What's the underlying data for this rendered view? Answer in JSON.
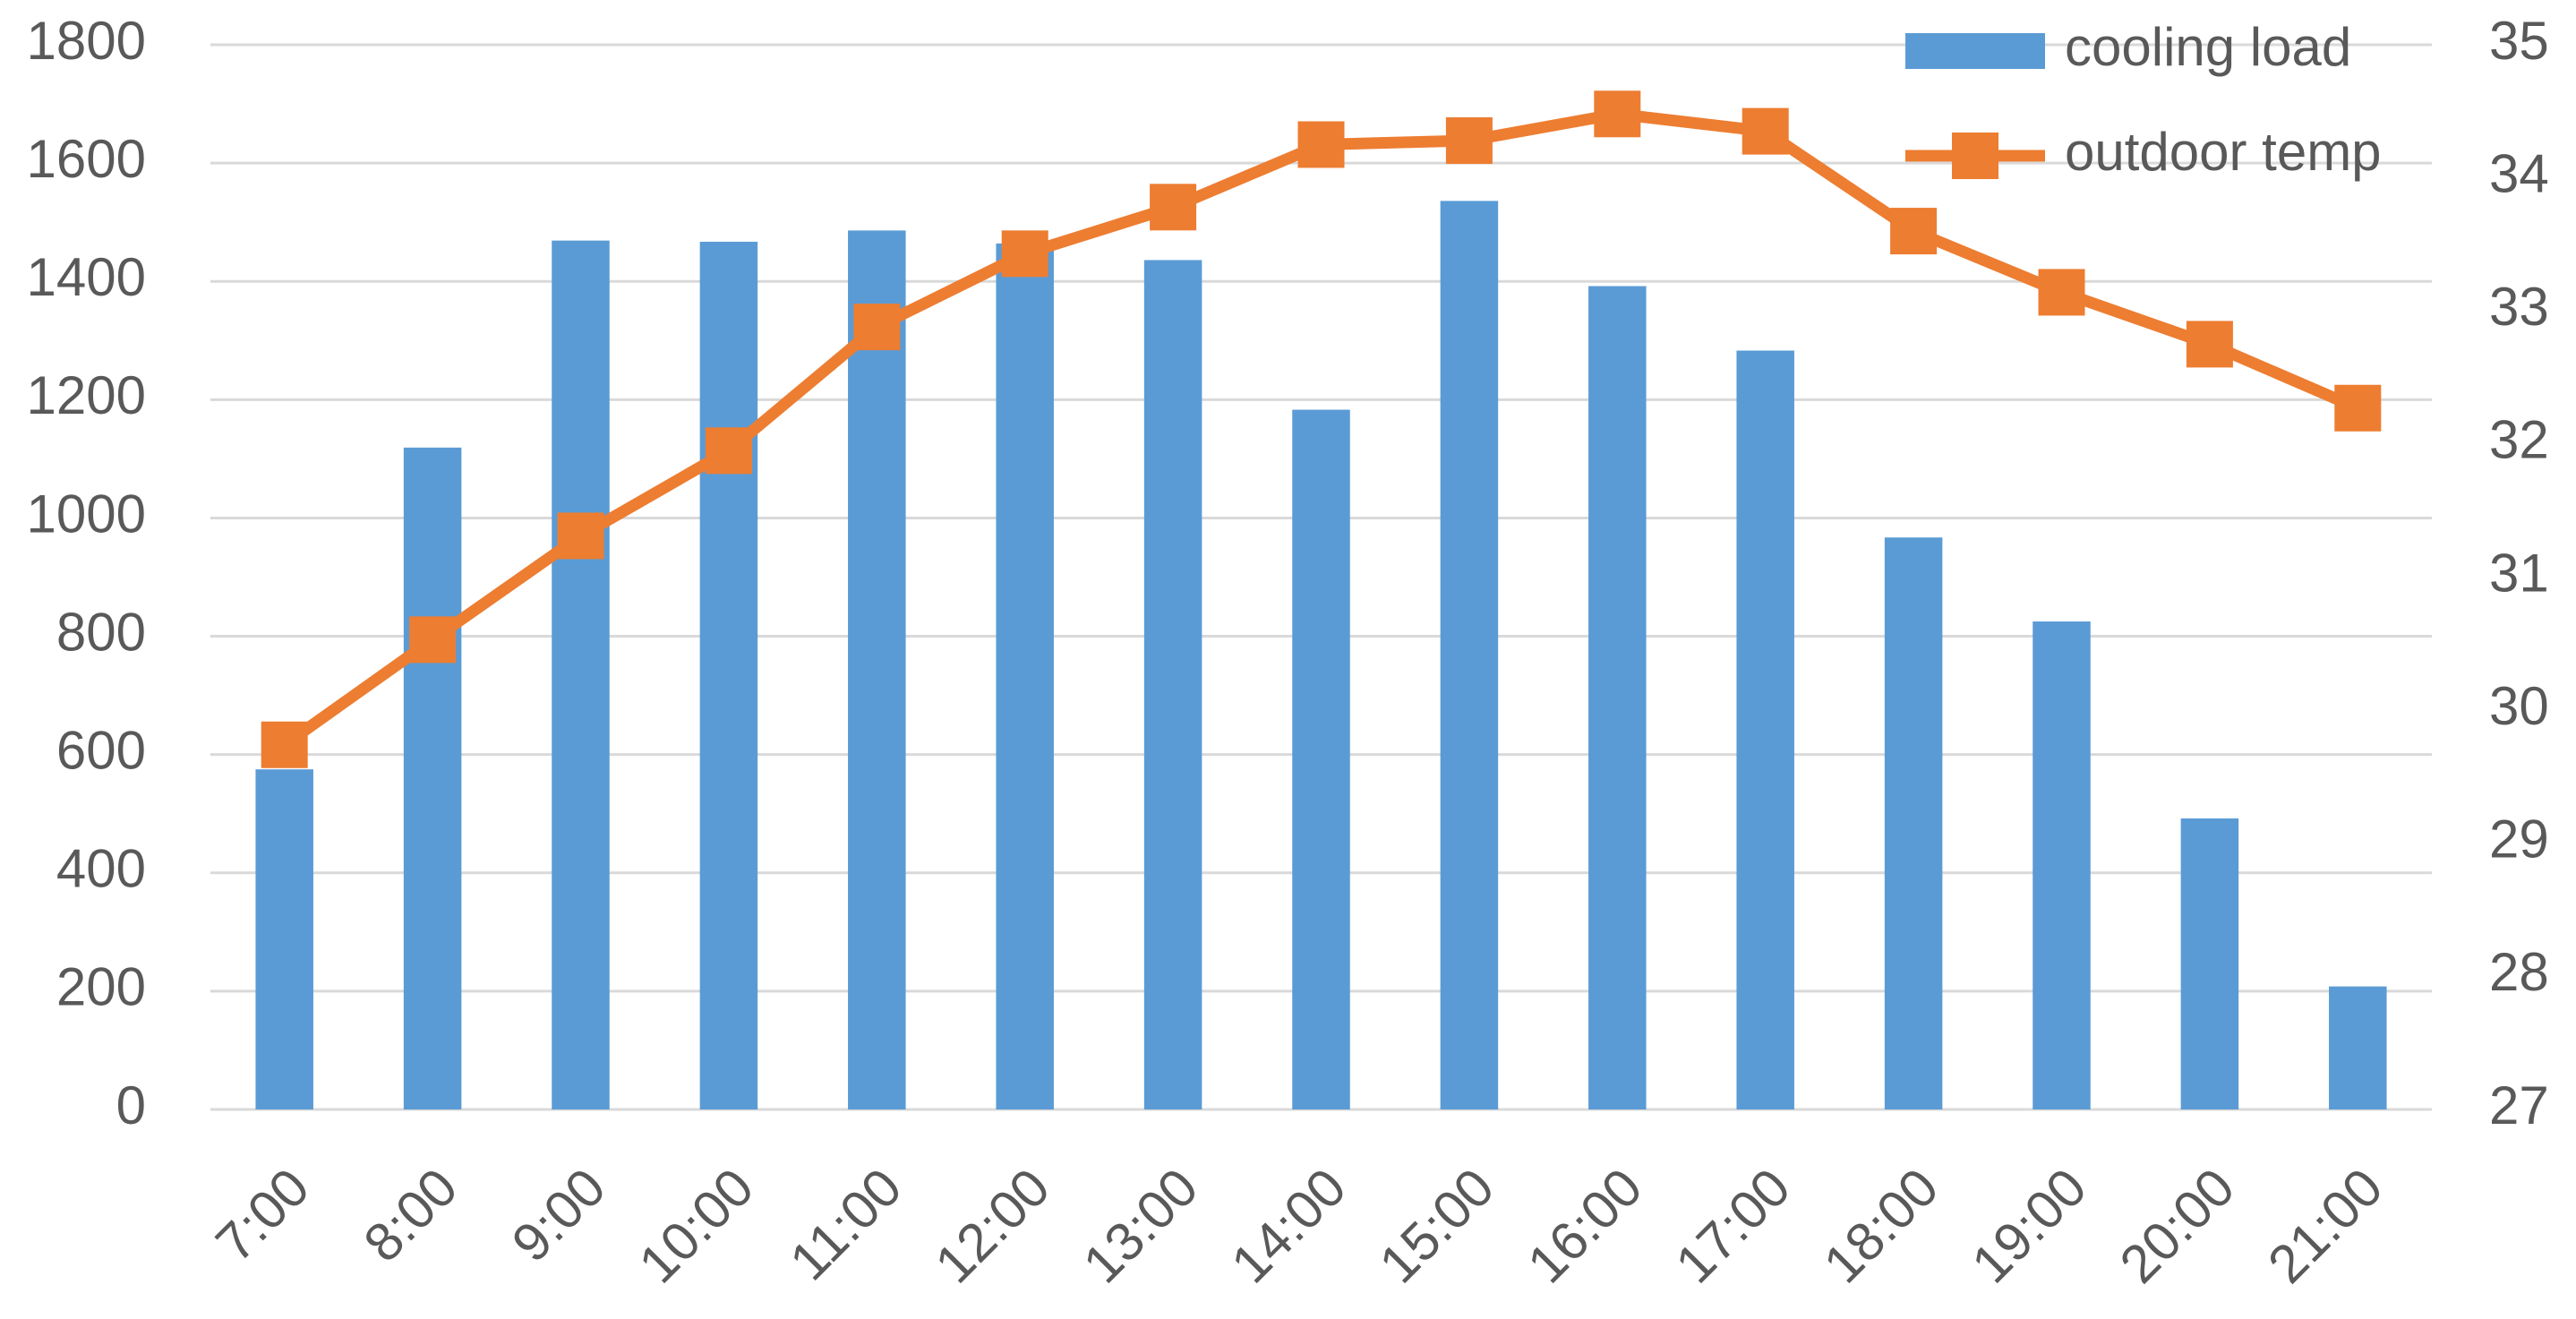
{
  "chart_data": {
    "type": "bar",
    "categories": [
      "7:00",
      "8:00",
      "9:00",
      "10:00",
      "11:00",
      "12:00",
      "13:00",
      "14:00",
      "15:00",
      "16:00",
      "17:00",
      "18:00",
      "19:00",
      "20:00",
      "21:00"
    ],
    "series": [
      {
        "name": "cooling load",
        "type": "bar",
        "color": "#5b9bd5",
        "values": [
          575,
          1119,
          1469,
          1467,
          1486,
          1464,
          1436,
          1183,
          1536,
          1392,
          1283,
          967,
          825,
          492,
          208
        ]
      },
      {
        "name": "outdoor temp",
        "type": "line",
        "axis": "y2",
        "color": "#ed7d31",
        "values": [
          29.74,
          30.53,
          31.31,
          31.95,
          32.88,
          33.43,
          33.78,
          34.25,
          34.28,
          34.48,
          34.35,
          33.6,
          33.14,
          32.75,
          32.27
        ]
      }
    ],
    "ylim": [
      0,
      1800
    ],
    "yticks": [
      0,
      200,
      400,
      600,
      800,
      1000,
      1200,
      1400,
      1600,
      1800
    ],
    "y2lim": [
      27,
      35
    ],
    "y2ticks": [
      27,
      28,
      29,
      30,
      31,
      32,
      33,
      34,
      35
    ],
    "grid": true,
    "legend": "top-right"
  }
}
